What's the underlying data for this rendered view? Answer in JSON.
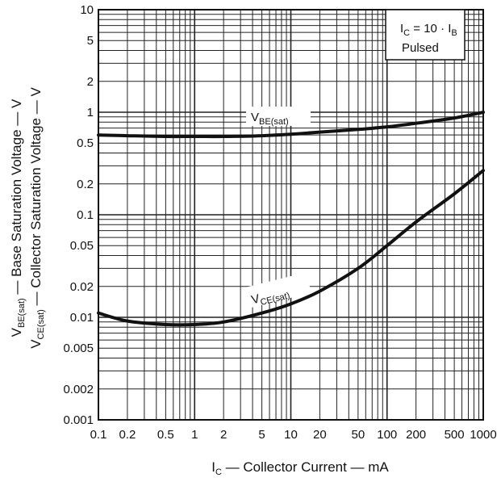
{
  "chart_data": {
    "type": "line",
    "x_scale": "log",
    "y_scale": "log",
    "xlim": [
      0.1,
      1000
    ],
    "ylim": [
      0.001,
      10
    ],
    "x_ticks": [
      0.1,
      0.2,
      0.5,
      1,
      2,
      5,
      10,
      20,
      50,
      100,
      200,
      500,
      1000
    ],
    "x_tick_labels": [
      "0.1",
      "0.2",
      "0.5",
      "1",
      "2",
      "5",
      "10",
      "20",
      "50",
      "100",
      "200",
      "500",
      "1000"
    ],
    "y_ticks": [
      0.001,
      0.002,
      0.005,
      0.01,
      0.02,
      0.05,
      0.1,
      0.2,
      0.5,
      1,
      2,
      5,
      10
    ],
    "y_tick_labels": [
      "0.001",
      "0.002",
      "0.005",
      "0.01",
      "0.02",
      "0.05",
      "0.1",
      "0.2",
      "0.5",
      "1",
      "2",
      "5",
      "10"
    ],
    "grid": true,
    "xlabel": {
      "main": "I",
      "sub": "C",
      "rest": " — Collector Current — mA"
    },
    "ylabel_lines": [
      {
        "main": "V",
        "sub": "BE(sat)",
        "rest": " — Base Saturation Voltage — V"
      },
      {
        "main": "V",
        "sub": "CE(sat)",
        "rest": " — Collector Saturation Voltage — V"
      }
    ],
    "condition_box": {
      "line1_main": "I",
      "line1_sub": "C",
      "line1_mid": " = 10 · I",
      "line1_sub2": "B",
      "line2": "Pulsed",
      "position": "top-right"
    },
    "series": [
      {
        "name": "VBE(sat)",
        "label_main": "V",
        "label_sub": "BE(sat)",
        "x": [
          0.1,
          0.2,
          0.5,
          1,
          2,
          5,
          10,
          20,
          50,
          100,
          200,
          500,
          1000
        ],
        "y": [
          0.6,
          0.59,
          0.58,
          0.58,
          0.58,
          0.59,
          0.61,
          0.64,
          0.68,
          0.72,
          0.78,
          0.88,
          1.0
        ]
      },
      {
        "name": "VCE(sat)",
        "label_main": "V",
        "label_sub": "CE(sat)",
        "x": [
          0.1,
          0.2,
          0.5,
          1,
          2,
          5,
          10,
          20,
          50,
          100,
          200,
          500,
          1000
        ],
        "y": [
          0.011,
          0.0092,
          0.0085,
          0.0085,
          0.009,
          0.011,
          0.0135,
          0.018,
          0.03,
          0.05,
          0.085,
          0.16,
          0.27
        ]
      }
    ],
    "line_color": "#111111",
    "grid_color": "#222222"
  }
}
